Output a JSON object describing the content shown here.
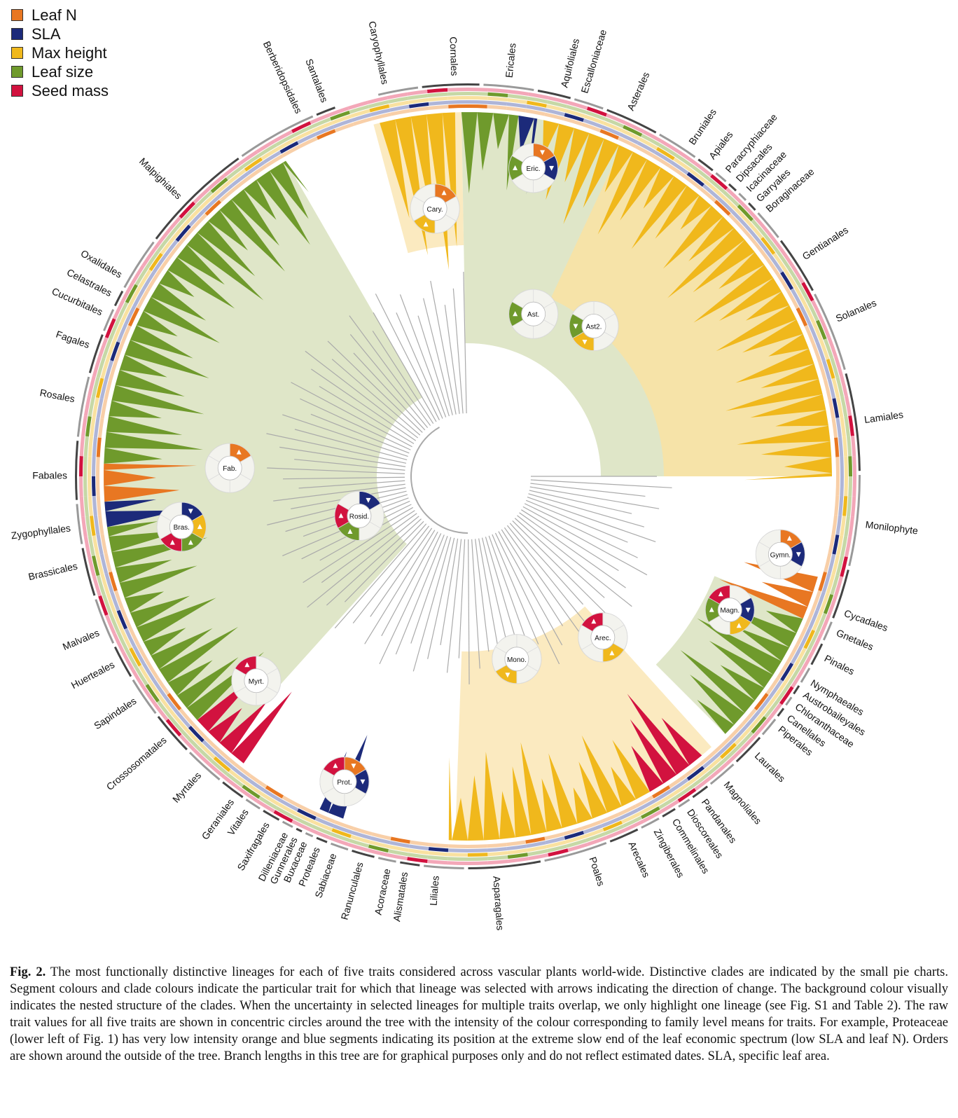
{
  "legend": [
    {
      "label": "Leaf N",
      "color": "#e87722"
    },
    {
      "label": "SLA",
      "color": "#1c2a7a"
    },
    {
      "label": "Max height",
      "color": "#f0b81c"
    },
    {
      "label": "Leaf size",
      "color": "#6f9a2c"
    },
    {
      "label": "Seed mass",
      "color": "#d2123f"
    }
  ],
  "orders": [
    {
      "name": "Caryophyllales",
      "angle": -12
    },
    {
      "name": "Cornales",
      "angle": -2
    },
    {
      "name": "Ericales",
      "angle": 6
    },
    {
      "name": "Aquifoliales",
      "angle": 14
    },
    {
      "name": "Escalloniaceae",
      "angle": 17
    },
    {
      "name": "Asterales",
      "angle": 24
    },
    {
      "name": "Bruniales",
      "angle": 34
    },
    {
      "name": "Apiales",
      "angle": 37.5
    },
    {
      "name": "Paracryphiaceae",
      "angle": 40.5
    },
    {
      "name": "Dipsacales",
      "angle": 42.5
    },
    {
      "name": "Icacinaceae",
      "angle": 44.5
    },
    {
      "name": "Garryales",
      "angle": 46.5
    },
    {
      "name": "Boraginaceae",
      "angle": 48.5
    },
    {
      "name": "Gentianales",
      "angle": 57
    },
    {
      "name": "Solanales",
      "angle": 67
    },
    {
      "name": "Lamiales",
      "angle": 82
    },
    {
      "name": "Monilophyte",
      "angle": 97
    },
    {
      "name": "Cycadales",
      "angle": 110
    },
    {
      "name": "Gnetales",
      "angle": 113
    },
    {
      "name": "Pinales",
      "angle": 117
    },
    {
      "name": "Nymphaeales",
      "angle": 121
    },
    {
      "name": "Austrobaileyales",
      "angle": 123
    },
    {
      "name": "Chloranthaceae",
      "angle": 125
    },
    {
      "name": "Canellales",
      "angle": 127
    },
    {
      "name": "Piperales",
      "angle": 129
    },
    {
      "name": "Laurales",
      "angle": 134
    },
    {
      "name": "Magnoliales",
      "angle": 140
    },
    {
      "name": "Pandanales",
      "angle": 144
    },
    {
      "name": "Dioscoreales",
      "angle": 146.5
    },
    {
      "name": "Commelinales",
      "angle": 149
    },
    {
      "name": "Zingiberales",
      "angle": 152
    },
    {
      "name": "Arecales",
      "angle": 156
    },
    {
      "name": "Poales",
      "angle": 162
    },
    {
      "name": "Asparagales",
      "angle": 176
    },
    {
      "name": "Liliales",
      "angle": 184.5
    },
    {
      "name": "Alismatales",
      "angle": 189
    },
    {
      "name": "Acoraceae",
      "angle": 191.5
    },
    {
      "name": "Ranunculales",
      "angle": 195.5
    },
    {
      "name": "Sabiaceae",
      "angle": 199.5
    },
    {
      "name": "Proteales",
      "angle": 202
    },
    {
      "name": "Buxaceae",
      "angle": 204
    },
    {
      "name": "Gunnerales",
      "angle": 205.5
    },
    {
      "name": "Dilleniaceae",
      "angle": 207
    },
    {
      "name": "Saxifragales",
      "angle": 210
    },
    {
      "name": "Vitales",
      "angle": 213.5
    },
    {
      "name": "Geraniales",
      "angle": 216
    },
    {
      "name": "Myrtales",
      "angle": 222
    },
    {
      "name": "Crossosomatales",
      "angle": 229
    },
    {
      "name": "Sapindales",
      "angle": 236
    },
    {
      "name": "Huerteales",
      "angle": 242
    },
    {
      "name": "Malvales",
      "angle": 247
    },
    {
      "name": "Brassicales",
      "angle": 257
    },
    {
      "name": "Zygophyllales",
      "angle": 262.5
    },
    {
      "name": "Fabales",
      "angle": 270
    },
    {
      "name": "Rosales",
      "angle": 281
    },
    {
      "name": "Fagales",
      "angle": 289
    },
    {
      "name": "Cucurbitales",
      "angle": 294
    },
    {
      "name": "Celastrales",
      "angle": 297
    },
    {
      "name": "Oxalidales",
      "angle": 300
    },
    {
      "name": "Malpighiales",
      "angle": 314
    },
    {
      "name": "Berberidopsidales",
      "angle": 335
    },
    {
      "name": "Santalales",
      "angle": 339
    }
  ],
  "clades": [
    {
      "label": "Cary.",
      "angle": -7,
      "r": 385,
      "segs": [
        "orange-up",
        "",
        "",
        "yellow-up",
        "",
        ""
      ]
    },
    {
      "label": "Eric.",
      "angle": 12,
      "r": 450,
      "segs": [
        "orange-down",
        "navy-down",
        "",
        "",
        "green-up",
        ""
      ]
    },
    {
      "label": "Ast.",
      "angle": 22,
      "r": 250,
      "segs": [
        "",
        "",
        "",
        "",
        "green-up",
        ""
      ]
    },
    {
      "label": "Ast2.",
      "angle": 40,
      "r": 280,
      "segs": [
        "",
        "",
        "",
        "yellow-down",
        "green-down",
        ""
      ]
    },
    {
      "label": "Gymn.",
      "angle": 104,
      "r": 460,
      "segs": [
        "orange-up",
        "navy-down",
        "",
        "",
        "",
        ""
      ]
    },
    {
      "label": "Magn.",
      "angle": 117,
      "r": 420,
      "segs": [
        "",
        "navy-down",
        "yellow-up",
        "",
        "green-up",
        "red-up"
      ]
    },
    {
      "label": "Arec.",
      "angle": 140,
      "r": 300,
      "segs": [
        "",
        "",
        "yellow-up",
        "",
        "",
        "red-up"
      ]
    },
    {
      "label": "Mono.",
      "angle": 165,
      "r": 270,
      "segs": [
        "",
        "",
        "",
        "yellow-down",
        "",
        ""
      ]
    },
    {
      "label": "Prot.",
      "angle": 202,
      "r": 470,
      "segs": [
        "orange-down",
        "navy-down",
        "",
        "",
        "",
        "red-up"
      ]
    },
    {
      "label": "Rosid.",
      "angle": 250,
      "r": 165,
      "segs": [
        "navy-down",
        "",
        "",
        "green-up",
        "red-up",
        ""
      ]
    },
    {
      "label": "Myrt.",
      "angle": 226,
      "r": 420,
      "segs": [
        "",
        "",
        "",
        "",
        "",
        "red-up"
      ]
    },
    {
      "label": "Bras.",
      "angle": 260,
      "r": 415,
      "segs": [
        "navy-down",
        "yellow-up",
        "green-up",
        "red-up",
        "",
        ""
      ]
    },
    {
      "label": "Fab.",
      "angle": 272,
      "r": 340,
      "segs": [
        "orange-up",
        "",
        "",
        "",
        "",
        ""
      ]
    }
  ],
  "caption": {
    "label": "Fig. 2.",
    "text": "The most functionally distinctive lineages for each of five traits considered across vascular plants world-wide. Distinctive clades are indicated by the small pie charts. Segment colours and clade colours indicate the particular trait for which that lineage was selected with arrows indicating the direction of change. The background colour visually indicates the nested structure of the clades. When the uncertainty in selected lineages for multiple traits overlap, we only highlight one lineage (see Fig. S1 and Table 2). The raw trait values for all five traits are shown in concentric circles around the tree with the intensity of the colour corresponding to family level means for traits. For example, Proteaceae (lower left of Fig. 1) has very low intensity orange and blue segments indicating its position at the extreme slow end of the leaf economic spectrum (low SLA and leaf N). Orders are shown around the outside of the tree. Branch lengths in this tree are for graphical purposes only and do not reflect estimated dates. SLA, specific leaf area."
  }
}
